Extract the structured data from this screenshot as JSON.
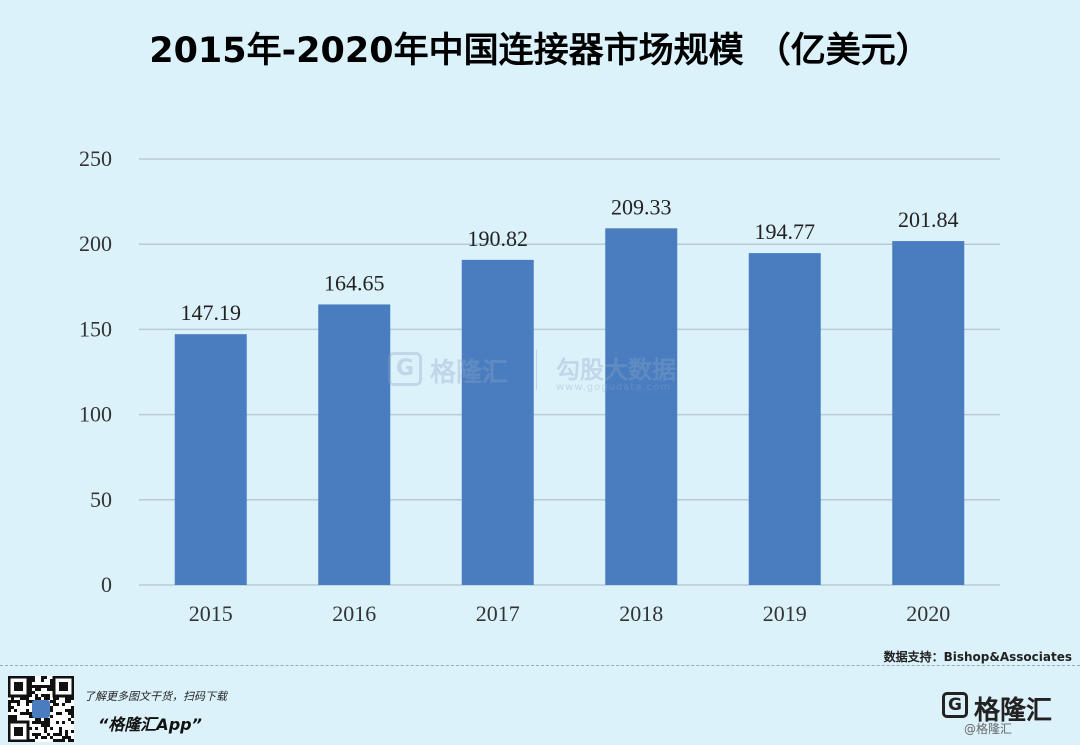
{
  "chart_data": {
    "type": "bar",
    "title": "2015年-2020年中国连接器市场规模 （亿美元）",
    "categories": [
      "2015",
      "2016",
      "2017",
      "2018",
      "2019",
      "2020"
    ],
    "values": [
      147.19,
      164.65,
      190.82,
      209.33,
      194.77,
      201.84
    ],
    "value_labels": [
      "147.19",
      "164.65",
      "190.82",
      "209.33",
      "194.77",
      "201.84"
    ],
    "ylim": [
      0,
      250
    ],
    "yticks": [
      "0",
      "50",
      "100",
      "150",
      "200",
      "250"
    ],
    "grid": true,
    "bar_color": "#4a7dbf",
    "grid_color": "#b7cbd6"
  },
  "source": "数据支持：Bishop&Associates",
  "watermark": {
    "logo_glyph": "G",
    "brand": "格隆汇",
    "name": "勾股大数据",
    "url": "www.gogudata.com"
  },
  "footer": {
    "promo": "了解更多图文干货，扫码下载",
    "app_name": "“格隆汇App”",
    "brand_glyph": "G",
    "brand": "格隆汇",
    "brand_sub": "@格隆汇"
  },
  "colors": {
    "background": "#dcf2fb"
  }
}
